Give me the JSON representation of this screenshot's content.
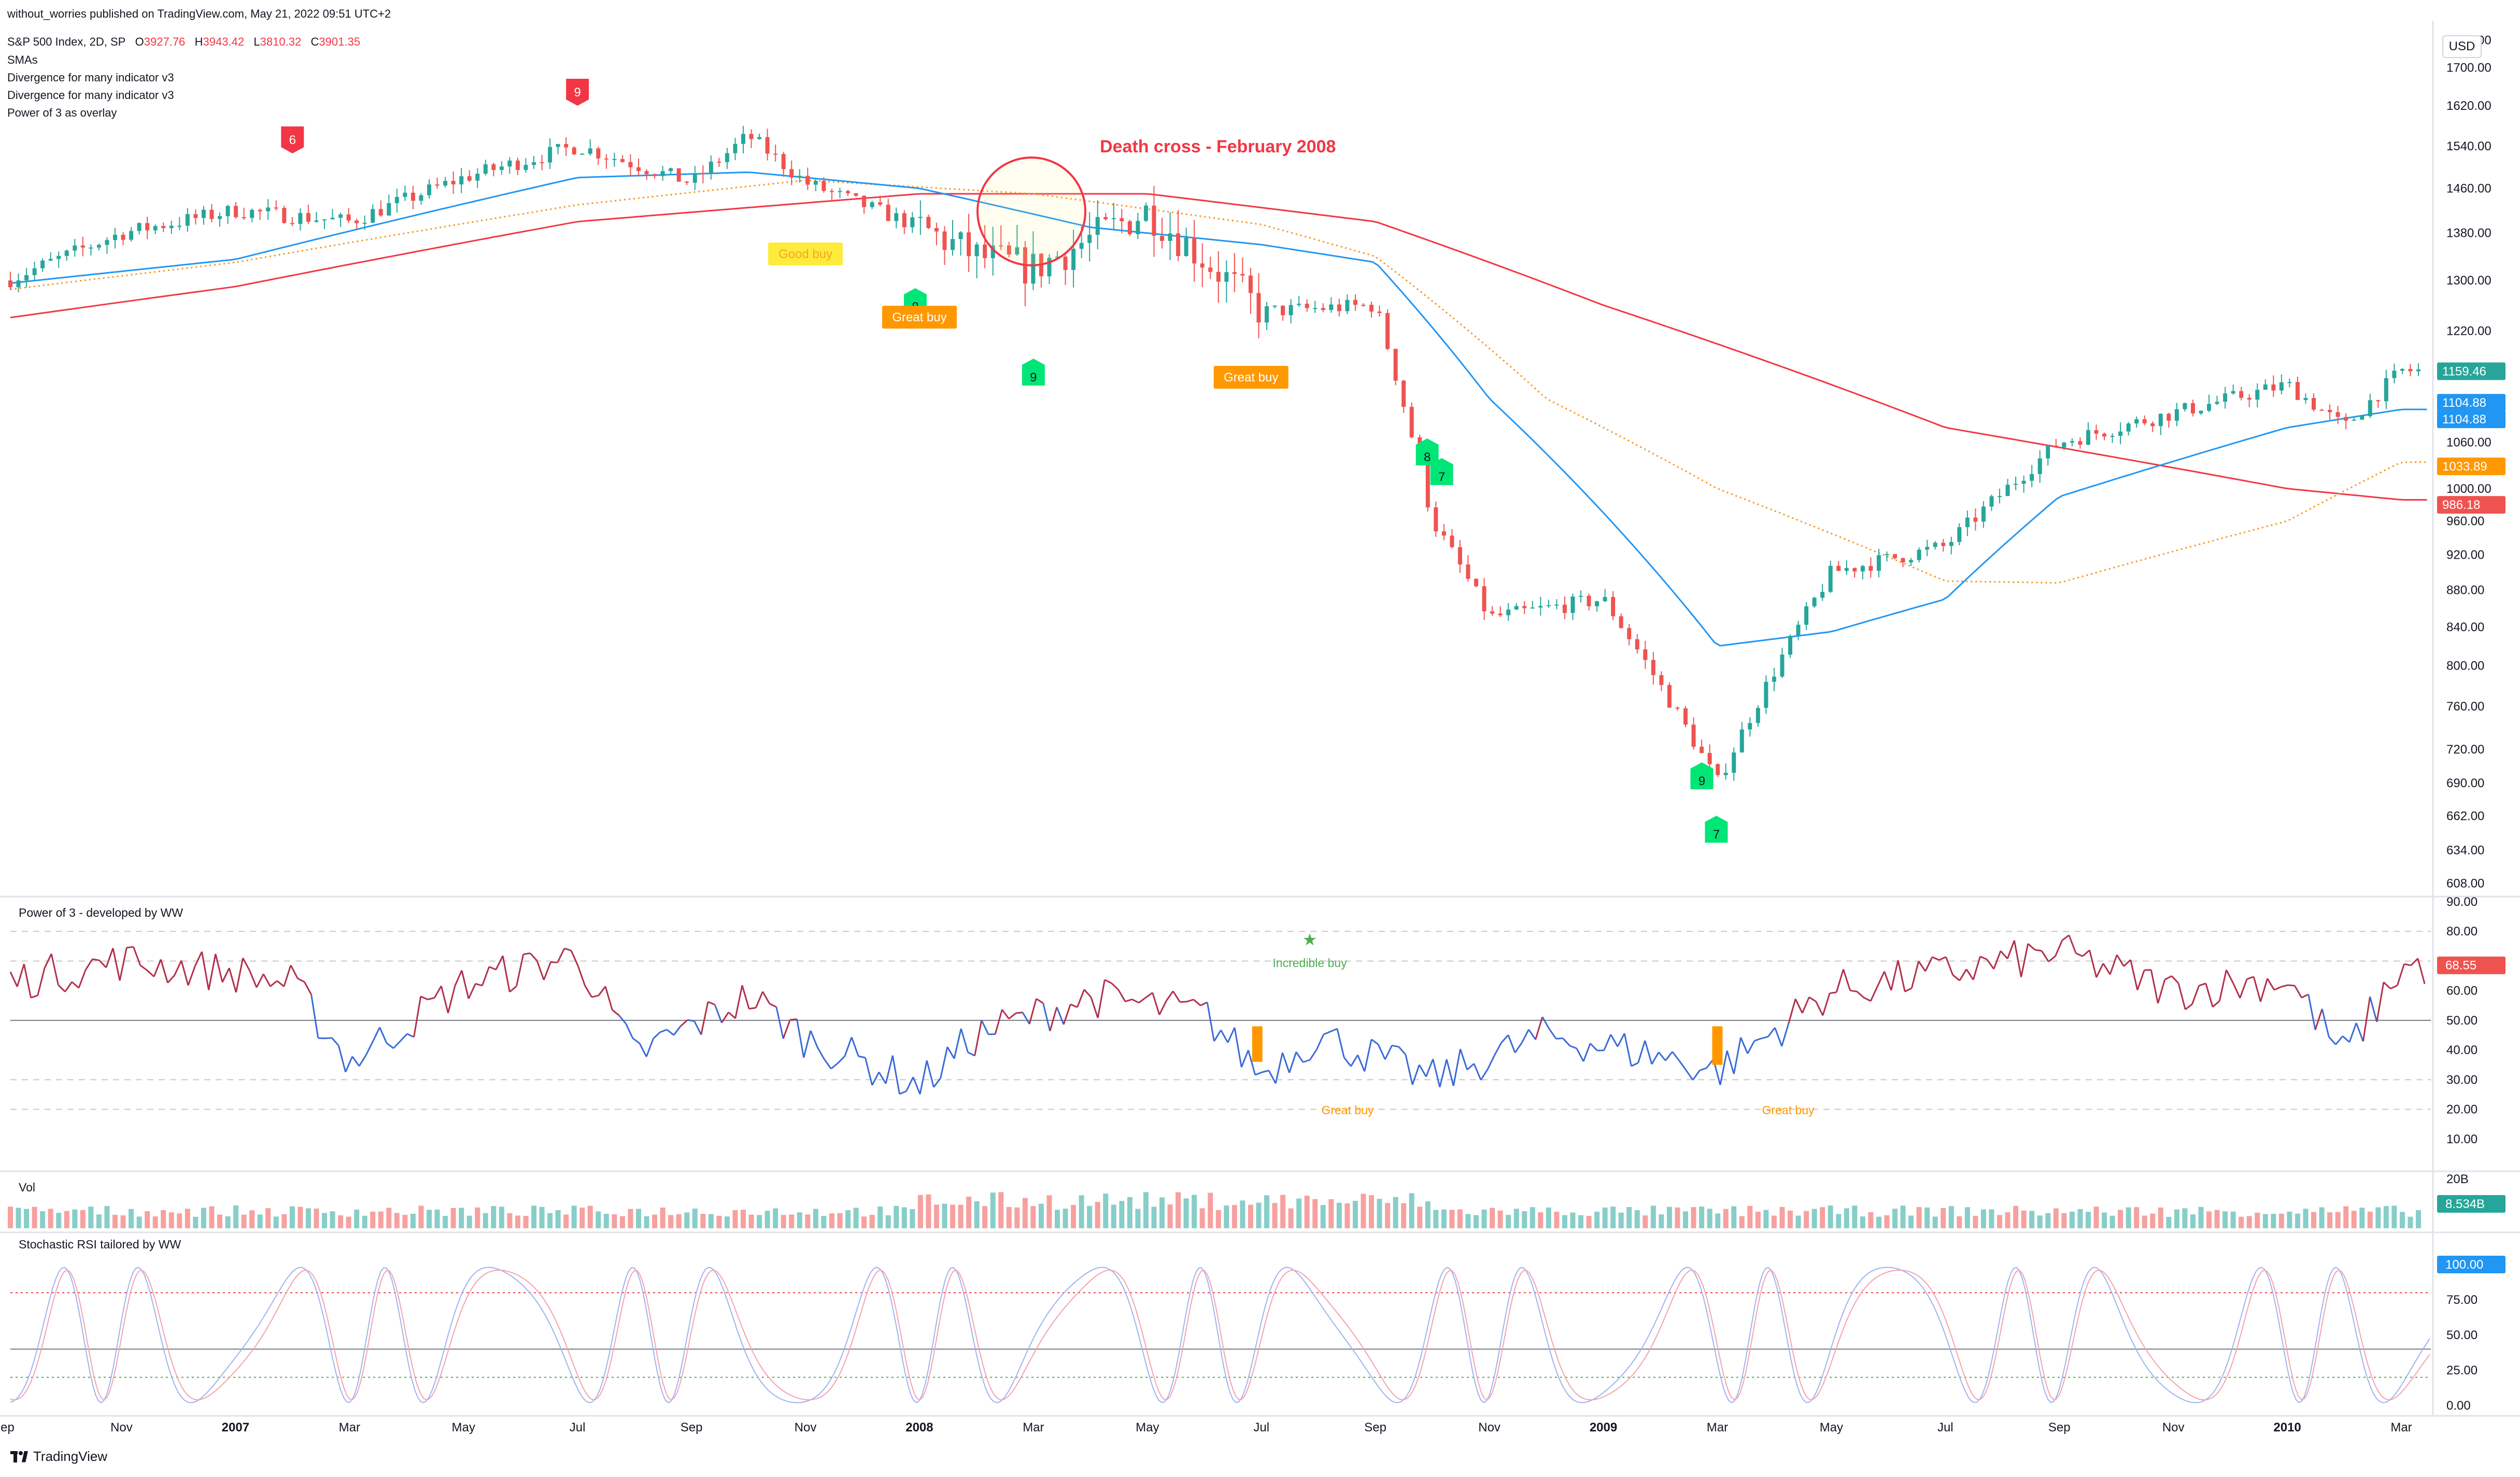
{
  "header": {
    "publisher": "without_worries published on TradingView.com, May 21, 2022 09:51 UTC+2",
    "symbol": "S&P 500 Index, 2D, SP",
    "o_label": "O",
    "o_value": "3927.76",
    "h_label": "H",
    "h_value": "3943.42",
    "l_label": "L",
    "l_value": "3810.32",
    "c_label": "C",
    "c_value": "3901.35",
    "indicators": [
      "SMAs",
      "Divergence for many indicator v3",
      "Divergence for many indicator v3",
      "Power of 3 as overlay"
    ]
  },
  "currency_button": "USD",
  "annotation": "Death cross - February 2008",
  "footer": {
    "brand": "TradingView"
  },
  "colors": {
    "bull": "#26a69a",
    "bear": "#ef5350",
    "sma50": "#2196f3",
    "sma100": "#f7931a",
    "sma200": "#f23645",
    "p3_bull": "#b2304a",
    "p3_bear": "#2962ff",
    "signal_red": "#f23645",
    "signal_green": "#00e676",
    "good_buy": "#ffeb3b",
    "great_buy": "#ff9800"
  },
  "chart_data": [
    {
      "type": "candlestick",
      "title": "S&P 500 Index, 2D, SP",
      "ylim": [
        600,
        1780
      ],
      "y_ticks": [
        "1760.00",
        "1700.00",
        "1620.00",
        "1540.00",
        "1460.00",
        "1380.00",
        "1300.00",
        "1220.00",
        "1120.00",
        "1060.00",
        "1000.00",
        "960.00",
        "920.00",
        "880.00",
        "840.00",
        "800.00",
        "760.00",
        "720.00",
        "690.00",
        "662.00",
        "634.00",
        "608.00"
      ],
      "x_ticks": [
        "ep",
        "Nov",
        "2007",
        "Mar",
        "May",
        "Jul",
        "Sep",
        "Nov",
        "2008",
        "Mar",
        "May",
        "Jul",
        "Sep",
        "Nov",
        "2009",
        "Mar",
        "May",
        "Jul",
        "Sep",
        "Nov",
        "2010",
        "Mar"
      ],
      "anchors": {
        "dates": [
          "Sep 2006",
          "Nov 2006",
          "Jan 2007",
          "Mar 2007",
          "May 2007",
          "Jul 2007",
          "Sep 2007",
          "Oct 2007",
          "Nov 2007",
          "Jan 2008",
          "Feb 2008",
          "Mar 2008",
          "May 2008",
          "Jul 2008",
          "Sep 2008",
          "Oct 2008",
          "Nov 2008",
          "Jan 2009",
          "Mar 2009",
          "May 2009",
          "Jul 2009",
          "Sep 2009",
          "Nov 2009",
          "Jan 2010",
          "Feb 2010",
          "Mar 2010"
        ],
        "close": [
          1300,
          1380,
          1420,
          1400,
          1480,
          1540,
          1470,
          1560,
          1470,
          1390,
          1340,
          1320,
          1420,
          1250,
          1260,
          960,
          850,
          870,
          690,
          900,
          930,
          1060,
          1100,
          1140,
          1080,
          1160
        ]
      },
      "sma50": {
        "x": [
          "Sep 2006",
          "Jan 2007",
          "Jul 2007",
          "Oct 2007",
          "Jan 2008",
          "Apr 2008",
          "Jul 2008",
          "Sep 2008",
          "Nov 2008",
          "Mar 2009",
          "May 2009",
          "Jul 2009",
          "Sep 2009",
          "Jan 2010",
          "Mar 2010"
        ],
        "y": [
          1295,
          1335,
          1480,
          1490,
          1460,
          1390,
          1360,
          1330,
          1120,
          820,
          835,
          870,
          990,
          1080,
          1105
        ]
      },
      "sma100": {
        "x": [
          "Sep 2006",
          "Jan 2007",
          "Jul 2007",
          "Nov 2007",
          "Mar 2008",
          "Jul 2008",
          "Sep 2008",
          "Dec 2008",
          "Mar 2009",
          "Jul 2009",
          "Sep 2009",
          "Jan 2010",
          "Mar 2010"
        ],
        "y": [
          1285,
          1330,
          1430,
          1475,
          1450,
          1395,
          1340,
          1120,
          1000,
          890,
          888,
          960,
          1034
        ]
      },
      "sma200": {
        "x": [
          "Sep 2006",
          "Jan 2007",
          "Jul 2007",
          "Jan 2008",
          "May 2008",
          "Sep 2008",
          "Jan 2009",
          "Jul 2009",
          "Jan 2010",
          "Mar 2010"
        ],
        "y": [
          1240,
          1290,
          1400,
          1450,
          1450,
          1400,
          1260,
          1080,
          1000,
          986
        ]
      },
      "last_prices": [
        "1159.46",
        "1104.88",
        "1104.88",
        "1033.89",
        "986.18"
      ],
      "markers": [
        {
          "label": "6",
          "kind": "sell",
          "date": "Feb 2007"
        },
        {
          "label": "9",
          "kind": "sell",
          "date": "Jul 2007"
        },
        {
          "label": "Good buy",
          "kind": "good",
          "date": "Nov 2007"
        },
        {
          "label": "8",
          "kind": "buy",
          "date": "Jan 2008"
        },
        {
          "label": "Great buy",
          "kind": "great",
          "date": "Jan 2008"
        },
        {
          "label": "9",
          "kind": "buy",
          "date": "Mar 2008"
        },
        {
          "label": "Great buy",
          "kind": "great",
          "date": "Jul 2008"
        },
        {
          "label": "8",
          "kind": "buy",
          "date": "Oct 2008"
        },
        {
          "label": "7",
          "kind": "buy",
          "date": "Oct 2008"
        },
        {
          "label": "9",
          "kind": "buy",
          "date": "Mar 2009"
        },
        {
          "label": "7",
          "kind": "buy",
          "date": "Mar 2009"
        }
      ]
    },
    {
      "type": "line",
      "title": "Power of 3 - developed by WW",
      "ylim": [
        0,
        90
      ],
      "y_ticks": [
        "90.00",
        "80.00",
        "70.00",
        "60.00",
        "50.00",
        "40.00",
        "30.00",
        "20.00",
        "10.00"
      ],
      "last_value": "68.55",
      "anchors": {
        "dates": [
          "Sep 2006",
          "Nov 2006",
          "Jan 2007",
          "Feb 2007",
          "Mar 2007",
          "May 2007",
          "Jul 2007",
          "Aug 2007",
          "Oct 2007",
          "Nov 2007",
          "Jan 2008",
          "Feb 2008",
          "Apr 2008",
          "Jun 2008",
          "Jul 2008",
          "Aug 2008",
          "Oct 2008",
          "Dec 2008",
          "Feb 2009",
          "Mar 2009",
          "May 2009",
          "Jul 2009",
          "Sep 2009",
          "Nov 2009",
          "Jan 2010",
          "Feb 2010",
          "Mar 2010"
        ],
        "values": [
          63,
          70,
          66,
          62,
          36,
          62,
          72,
          38,
          58,
          44,
          28,
          45,
          58,
          52,
          32,
          45,
          30,
          45,
          38,
          33,
          60,
          66,
          73,
          60,
          64,
          38,
          68
        ]
      },
      "labels": [
        {
          "text": "Incredible buy",
          "date": "Jul 2008"
        },
        {
          "text": "Great buy",
          "date": "Jul 2008"
        },
        {
          "text": "Great buy",
          "date": "Mar 2009"
        }
      ]
    },
    {
      "type": "bar",
      "title": "Vol",
      "y_ticks": [
        "20B"
      ],
      "last_value": "8.534B"
    },
    {
      "type": "line",
      "title": "Stochastic RSI tailored by WW",
      "ylim": [
        0,
        100
      ],
      "y_ticks": [
        "100.00",
        "75.00",
        "50.00",
        "25.00",
        "0.00"
      ],
      "last_value": "100.00",
      "levels": [
        80,
        20
      ]
    }
  ]
}
